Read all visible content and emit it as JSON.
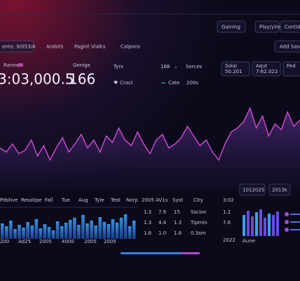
{
  "topbar": {
    "buttons": [
      "Gaining",
      "Play/yire",
      "Contid"
    ]
  },
  "toolbar": {
    "filter": "ente: 9/053/A",
    "tabs": [
      "Andots",
      "Pagint Vialks",
      "Calpons"
    ],
    "action": "Add Sasco"
  },
  "kpis": {
    "label": "Ranne",
    "main_value": "3:03,000.5",
    "second_label": "Genige",
    "second_value": "166"
  },
  "controls": {
    "type_label": "Tyrs",
    "type_value": "Cract",
    "count": "188",
    "series_label": "Serces",
    "date_label": "Cate",
    "date_value": "200s"
  },
  "stat_boxes": [
    {
      "title": "Solal",
      "value": "50.201"
    },
    {
      "title": "Aqut",
      "value": "7:62.022"
    },
    {
      "title": "Fed",
      "value": ""
    }
  ],
  "line_chart": {
    "values": [
      45,
      40,
      50,
      38,
      42,
      55,
      35,
      48,
      30,
      45,
      58,
      40,
      50,
      62,
      45,
      55,
      40,
      60,
      52,
      70,
      55,
      48,
      65,
      50,
      38,
      55,
      62,
      45,
      50,
      58,
      72,
      60,
      48,
      55,
      40,
      30,
      50,
      65,
      70,
      78,
      95,
      70,
      85,
      60,
      75,
      68,
      90,
      72,
      80
    ]
  },
  "bar_chart": {
    "headers": [
      "Pdstive",
      "Resstipe",
      "Fall",
      "Tue",
      "Aug",
      "Tyle",
      "Test",
      "Norp"
    ],
    "values": [
      22,
      18,
      26,
      14,
      20,
      16,
      24,
      19,
      28,
      15,
      21,
      17,
      12,
      25,
      18,
      23,
      27,
      30,
      20,
      34,
      22,
      26,
      19,
      31,
      24,
      21,
      28,
      23,
      30,
      35,
      18,
      26
    ],
    "x_labels": [
      "200",
      "Ad25",
      "2005",
      "4000",
      "2005",
      "2005"
    ]
  },
  "table": {
    "headers": [
      "2005",
      "AV1s",
      "Syst",
      "City"
    ],
    "rows": [
      [
        "1.3",
        "7.9",
        "15",
        "Sscion"
      ],
      [
        "1.3",
        "4.4",
        "1.3",
        "Tipmin"
      ],
      [
        "1.6",
        "1.0",
        "1.6",
        "0.3sm"
      ]
    ],
    "side": [
      "3:02",
      "1.2",
      "7.6",
      "2022"
    ]
  },
  "pills": [
    "1012025",
    "2013k"
  ],
  "mini_chart": {
    "values": [
      30,
      36,
      28,
      34,
      38,
      26,
      32,
      30,
      35
    ],
    "label": "Aune"
  }
}
